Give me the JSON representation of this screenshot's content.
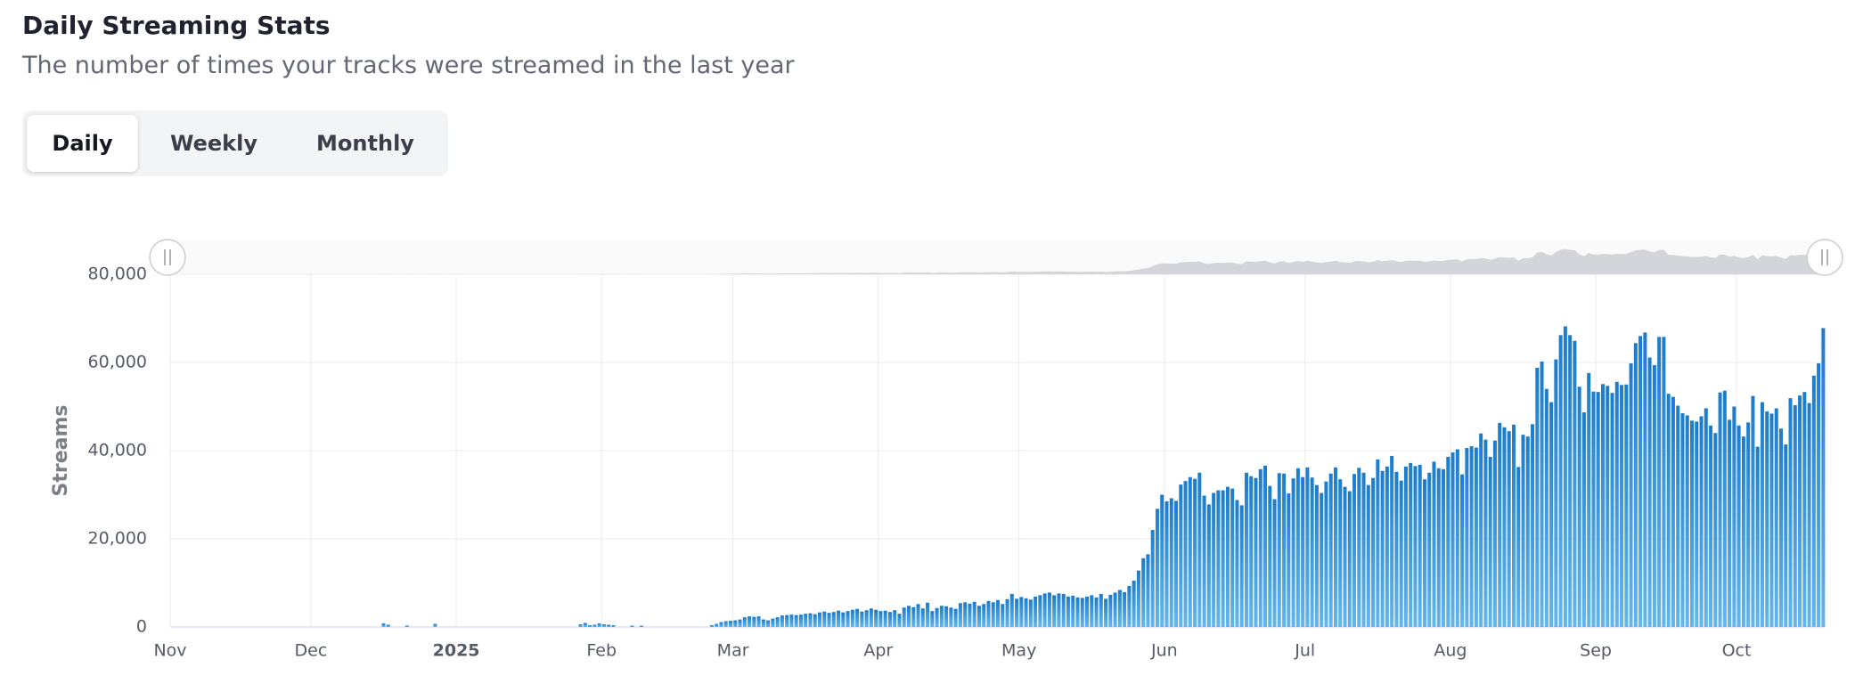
{
  "header": {
    "title": "Daily Streaming Stats",
    "subtitle": "The number of times your tracks were streamed in the last year"
  },
  "tabs": {
    "items": [
      "Daily",
      "Weekly",
      "Monthly"
    ],
    "selected": "Daily"
  },
  "chart_data": {
    "type": "bar",
    "y_label": "Streams",
    "color": "#1b7ccc",
    "grid": true,
    "xlim": [
      0,
      353
    ],
    "xticks": [
      {
        "value": 0,
        "label": "Nov"
      },
      {
        "value": 30,
        "label": "Dec"
      },
      {
        "value": 61,
        "label": "2025"
      },
      {
        "value": 92,
        "label": "Feb"
      },
      {
        "value": 120,
        "label": "Mar"
      },
      {
        "value": 151,
        "label": "Apr"
      },
      {
        "value": 181,
        "label": "May"
      },
      {
        "value": 212,
        "label": "Jun"
      },
      {
        "value": 242,
        "label": "Jul"
      },
      {
        "value": 273,
        "label": "Aug"
      },
      {
        "value": 304,
        "label": "Sep"
      },
      {
        "value": 334,
        "label": "Oct"
      }
    ],
    "ylim": [
      0,
      80000
    ],
    "yticks": [
      0,
      {
        "value": 20000,
        "label": "20,000"
      },
      {
        "value": 40000,
        "label": "40,000"
      },
      {
        "value": 60000,
        "label": "60,000"
      },
      {
        "value": 80000,
        "label": "80,000"
      }
    ],
    "values": [
      0,
      0,
      0,
      0,
      0,
      0,
      0,
      0,
      0,
      0,
      0,
      0,
      0,
      0,
      0,
      0,
      0,
      0,
      0,
      0,
      0,
      0,
      0,
      0,
      0,
      0,
      0,
      0,
      0,
      0,
      0,
      0,
      0,
      0,
      0,
      0,
      0,
      0,
      0,
      0,
      0,
      0,
      0,
      0,
      0,
      800,
      500,
      0,
      0,
      0,
      300,
      0,
      0,
      0,
      0,
      0,
      700,
      0,
      0,
      0,
      0,
      0,
      0,
      0,
      0,
      0,
      0,
      0,
      0,
      0,
      0,
      0,
      0,
      0,
      0,
      0,
      0,
      0,
      0,
      0,
      0,
      0,
      0,
      0,
      0,
      0,
      0,
      600,
      900,
      400,
      500,
      800,
      600,
      500,
      400,
      0,
      0,
      0,
      300,
      0,
      300,
      0,
      0,
      0,
      0,
      0,
      0,
      0,
      0,
      0,
      0,
      0,
      0,
      0,
      0,
      400,
      700,
      1100,
      1300,
      1400,
      1500,
      1700,
      2200,
      2400,
      2300,
      2400,
      1700,
      1500,
      1900,
      2200,
      2600,
      2700,
      2800,
      2700,
      2800,
      3000,
      3100,
      2900,
      3300,
      3500,
      3200,
      3400,
      3700,
      3300,
      3600,
      3900,
      4100,
      3500,
      3800,
      4200,
      3900,
      3600,
      3700,
      3400,
      3800,
      3000,
      4400,
      4800,
      4500,
      5200,
      4200,
      5500,
      3600,
      4300,
      4800,
      4700,
      4400,
      4100,
      5400,
      5600,
      5300,
      5700,
      4800,
      5200,
      5900,
      5600,
      6100,
      5200,
      6300,
      7500,
      6400,
      6800,
      6500,
      6200,
      6900,
      7200,
      7600,
      7800,
      7200,
      7600,
      7500,
      6900,
      7100,
      6700,
      6600,
      6900,
      7200,
      6700,
      7500,
      6400,
      7300,
      7800,
      8400,
      7900,
      9300,
      10500,
      12800,
      15600,
      16500,
      22000,
      26800,
      30000,
      28500,
      29200,
      28600,
      32300,
      33100,
      34000,
      33600,
      35000,
      29800,
      27800,
      30400,
      31000,
      31000,
      31800,
      31400,
      28800,
      27600,
      35000,
      34200,
      33800,
      35800,
      36600,
      32000,
      29000,
      34900,
      34800,
      30300,
      33700,
      36000,
      34000,
      36200,
      33900,
      32200,
      30400,
      33000,
      34800,
      36200,
      33500,
      31800,
      30800,
      34700,
      36100,
      35000,
      32200,
      33800,
      38000,
      35400,
      36400,
      38800,
      35200,
      33200,
      36400,
      37200,
      36500,
      36800,
      33500,
      35000,
      37500,
      36000,
      35800,
      38600,
      39600,
      40300,
      34600,
      40600,
      41000,
      40700,
      43900,
      42500,
      38600,
      42300,
      46300,
      45300,
      44400,
      45900,
      36300,
      43600,
      43200,
      46000,
      58800,
      60200,
      54000,
      51000,
      60700,
      66200,
      68200,
      66200,
      64900,
      54500,
      48700,
      57600,
      53400,
      53300,
      55100,
      54700,
      53100,
      55600,
      54900,
      55000,
      59800,
      64400,
      66000,
      66800,
      61100,
      59400,
      65800,
      65800,
      52900,
      52200,
      50200,
      48500,
      48000,
      46800,
      46600,
      47800,
      49600,
      45700,
      44000,
      53200,
      53600,
      47000,
      50000,
      45700,
      43200,
      46400,
      52400,
      40900,
      51000,
      48900,
      48400,
      49600,
      45000,
      41400,
      51900,
      50300,
      52500,
      53300,
      50800,
      57000,
      59800,
      67800
    ]
  }
}
